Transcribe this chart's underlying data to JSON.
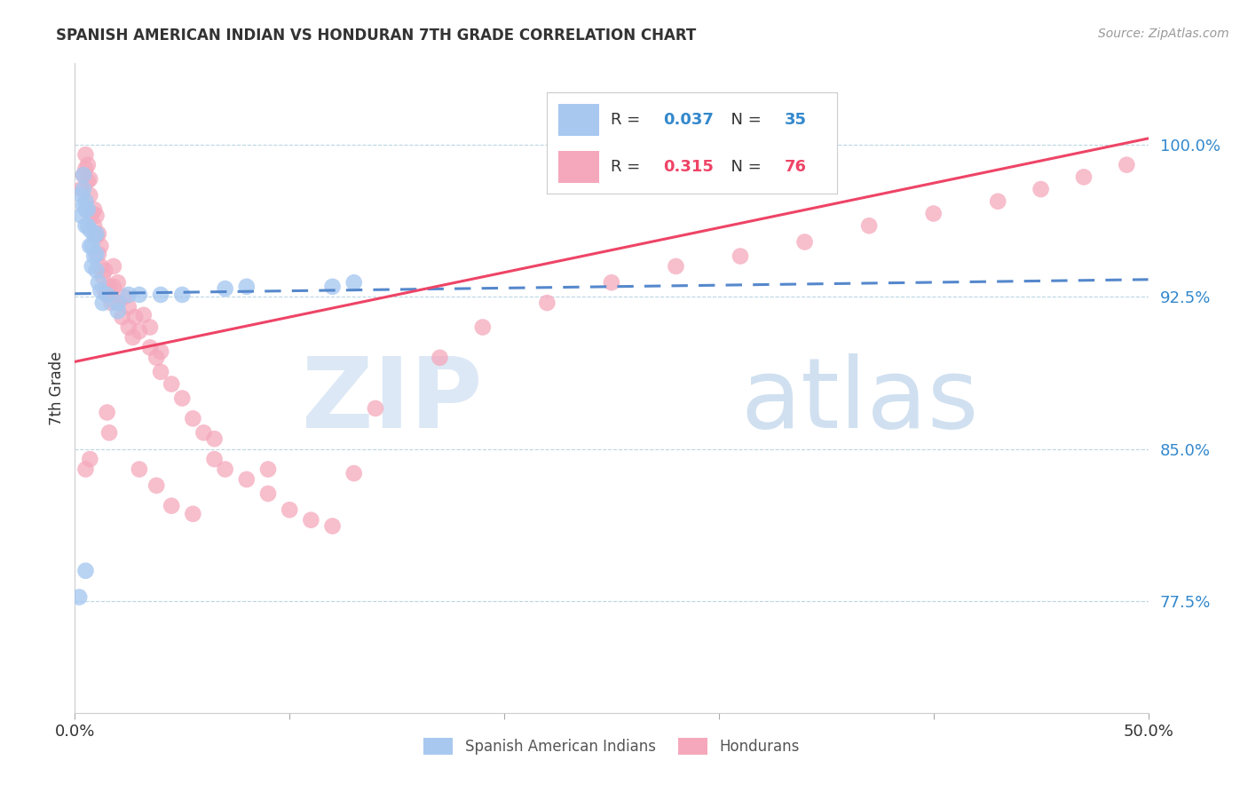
{
  "title": "SPANISH AMERICAN INDIAN VS HONDURAN 7TH GRADE CORRELATION CHART",
  "source": "Source: ZipAtlas.com",
  "ylabel": "7th Grade",
  "ytick_labels": [
    "77.5%",
    "85.0%",
    "92.5%",
    "100.0%"
  ],
  "ytick_values": [
    0.775,
    0.85,
    0.925,
    1.0
  ],
  "xlim": [
    0.0,
    0.5
  ],
  "ylim": [
    0.72,
    1.04
  ],
  "color_blue": "#a8c8f0",
  "color_pink": "#f5a8bc",
  "trendline_blue_color": "#5588cc",
  "trendline_pink_color": "#ee4466",
  "blue_r": "0.037",
  "blue_n": "35",
  "pink_r": "0.315",
  "pink_n": "76",
  "blue_x": [
    0.002,
    0.003,
    0.003,
    0.004,
    0.004,
    0.004,
    0.005,
    0.005,
    0.005,
    0.006,
    0.006,
    0.007,
    0.007,
    0.008,
    0.008,
    0.009,
    0.009,
    0.01,
    0.01,
    0.01,
    0.011,
    0.012,
    0.013,
    0.015,
    0.02,
    0.02,
    0.025,
    0.03,
    0.04,
    0.05,
    0.07,
    0.08,
    0.12,
    0.13,
    0.005
  ],
  "blue_y": [
    0.777,
    0.965,
    0.975,
    0.97,
    0.978,
    0.985,
    0.96,
    0.968,
    0.972,
    0.96,
    0.968,
    0.95,
    0.958,
    0.94,
    0.95,
    0.945,
    0.955,
    0.938,
    0.946,
    0.956,
    0.932,
    0.928,
    0.922,
    0.926,
    0.918,
    0.922,
    0.926,
    0.926,
    0.926,
    0.926,
    0.929,
    0.93,
    0.93,
    0.932,
    0.79
  ],
  "pink_x": [
    0.003,
    0.004,
    0.005,
    0.005,
    0.006,
    0.006,
    0.007,
    0.007,
    0.008,
    0.009,
    0.009,
    0.01,
    0.01,
    0.011,
    0.011,
    0.012,
    0.012,
    0.013,
    0.014,
    0.014,
    0.015,
    0.016,
    0.017,
    0.018,
    0.018,
    0.02,
    0.02,
    0.022,
    0.023,
    0.025,
    0.025,
    0.027,
    0.028,
    0.03,
    0.032,
    0.035,
    0.035,
    0.038,
    0.04,
    0.04,
    0.045,
    0.05,
    0.055,
    0.06,
    0.065,
    0.065,
    0.07,
    0.08,
    0.09,
    0.09,
    0.1,
    0.11,
    0.12,
    0.13,
    0.14,
    0.17,
    0.19,
    0.22,
    0.25,
    0.28,
    0.31,
    0.34,
    0.37,
    0.4,
    0.43,
    0.45,
    0.47,
    0.49,
    0.005,
    0.007,
    0.015,
    0.016,
    0.03,
    0.038,
    0.045,
    0.055
  ],
  "pink_y": [
    0.978,
    0.985,
    0.988,
    0.995,
    0.982,
    0.99,
    0.975,
    0.983,
    0.966,
    0.96,
    0.968,
    0.955,
    0.965,
    0.946,
    0.956,
    0.94,
    0.95,
    0.935,
    0.928,
    0.938,
    0.926,
    0.93,
    0.922,
    0.93,
    0.94,
    0.922,
    0.932,
    0.915,
    0.925,
    0.91,
    0.92,
    0.905,
    0.915,
    0.908,
    0.916,
    0.9,
    0.91,
    0.895,
    0.888,
    0.898,
    0.882,
    0.875,
    0.865,
    0.858,
    0.845,
    0.855,
    0.84,
    0.835,
    0.828,
    0.84,
    0.82,
    0.815,
    0.812,
    0.838,
    0.87,
    0.895,
    0.91,
    0.922,
    0.932,
    0.94,
    0.945,
    0.952,
    0.96,
    0.966,
    0.972,
    0.978,
    0.984,
    0.99,
    0.84,
    0.845,
    0.868,
    0.858,
    0.84,
    0.832,
    0.822,
    0.818
  ]
}
